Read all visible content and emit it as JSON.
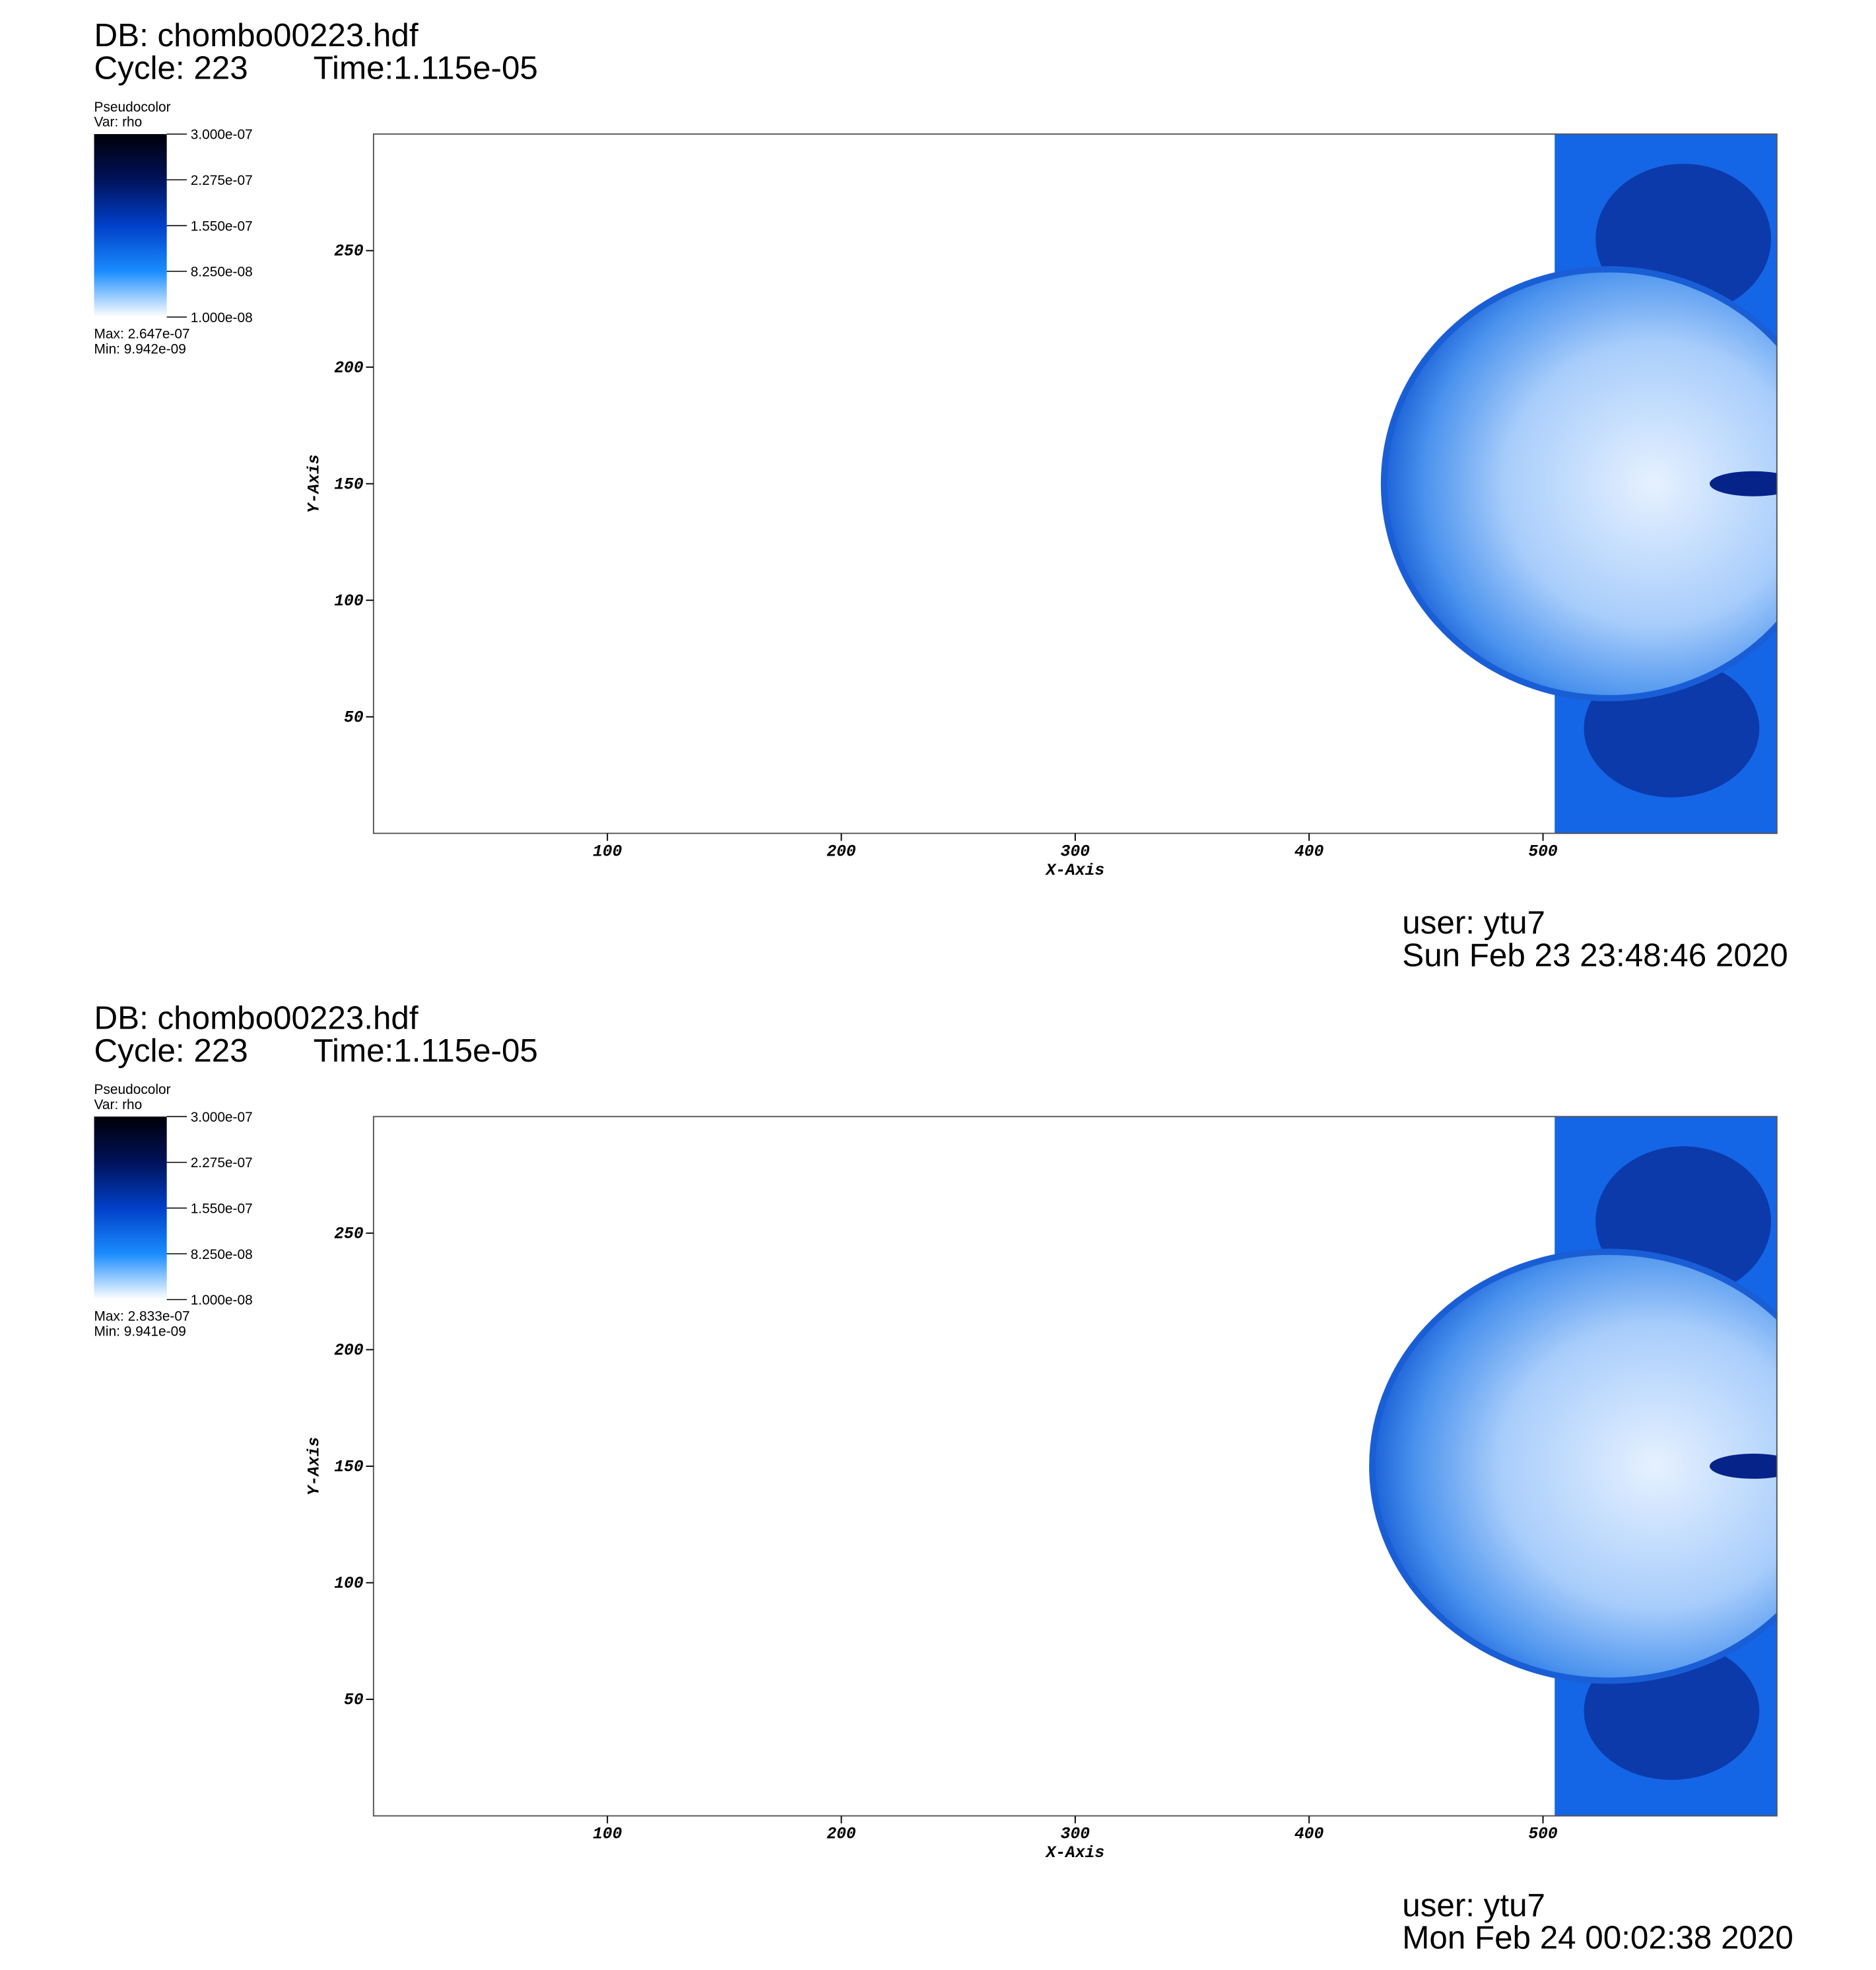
{
  "chart_data": [
    {
      "type": "pseudocolor",
      "db": "DB: chombo00223.hdf",
      "cycle": "Cycle: 223",
      "time": "Time:1.115e-05",
      "legend_title": "Pseudocolor",
      "legend_var": "Var: rho",
      "clim": [
        1e-08,
        3e-07
      ],
      "colorbar_ticks": [
        {
          "value": 3e-07,
          "label": "3.000e-07"
        },
        {
          "value": 2.275e-07,
          "label": "2.275e-07"
        },
        {
          "value": 1.55e-07,
          "label": "1.550e-07"
        },
        {
          "value": 8.25e-08,
          "label": "8.250e-08"
        },
        {
          "value": 1e-08,
          "label": "1.000e-08"
        }
      ],
      "colormap": [
        "#ffffff",
        "#1a8cff",
        "#0040c8",
        "#00125a",
        "#000008"
      ],
      "max_label": "Max:  2.647e-07",
      "min_label": "Min:  9.942e-09",
      "xlabel": "X-Axis",
      "ylabel": "Y-Axis",
      "xlim": [
        0,
        600
      ],
      "ylim": [
        0,
        300
      ],
      "xticks": [
        100,
        200,
        300,
        400,
        500
      ],
      "yticks": [
        50,
        100,
        150,
        200,
        250
      ],
      "user": "user: ytu7",
      "date": "Sun Feb 23 23:48:46 2020"
    },
    {
      "type": "pseudocolor",
      "db": "DB: chombo00223.hdf",
      "cycle": "Cycle: 223",
      "time": "Time:1.115e-05",
      "legend_title": "Pseudocolor",
      "legend_var": "Var: rho",
      "clim": [
        1e-08,
        3e-07
      ],
      "colorbar_ticks": [
        {
          "value": 3e-07,
          "label": "3.000e-07"
        },
        {
          "value": 2.275e-07,
          "label": "2.275e-07"
        },
        {
          "value": 1.55e-07,
          "label": "1.550e-07"
        },
        {
          "value": 8.25e-08,
          "label": "8.250e-08"
        },
        {
          "value": 1e-08,
          "label": "1.000e-08"
        }
      ],
      "colormap": [
        "#ffffff",
        "#1a8cff",
        "#0040c8",
        "#00125a",
        "#000008"
      ],
      "max_label": "Max:  2.833e-07",
      "min_label": "Min:  9.941e-09",
      "xlabel": "X-Axis",
      "ylabel": "Y-Axis",
      "xlim": [
        0,
        600
      ],
      "ylim": [
        0,
        300
      ],
      "xticks": [
        100,
        200,
        300,
        400,
        500
      ],
      "yticks": [
        50,
        100,
        150,
        200,
        250
      ],
      "user": "user: ytu7",
      "date": "Mon Feb 24 00:02:38 2020"
    }
  ]
}
